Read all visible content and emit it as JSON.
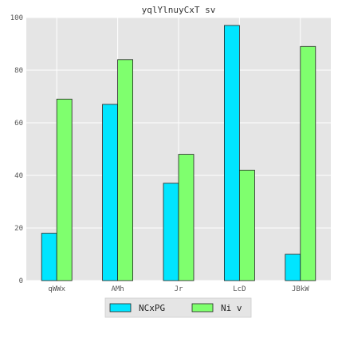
{
  "chart_data": {
    "type": "bar",
    "title": "yqlYlnuyCxT sv",
    "xlabel": "",
    "ylabel": "",
    "categories": [
      "qWWx",
      "AMh",
      "Jr",
      "LcD",
      "JBkW"
    ],
    "series": [
      {
        "name": "NCxPG",
        "color": "#00e5ff",
        "values": [
          18,
          67,
          37,
          97,
          10
        ]
      },
      {
        "name": "Ni v",
        "color": "#7fff6e",
        "values": [
          69,
          84,
          48,
          42,
          89
        ]
      }
    ],
    "ylim": [
      0,
      100
    ],
    "yticks": [
      0,
      20,
      40,
      60,
      80,
      100
    ],
    "grid": true,
    "legend_position": "bottom-center",
    "background": "#e5e5e5"
  }
}
